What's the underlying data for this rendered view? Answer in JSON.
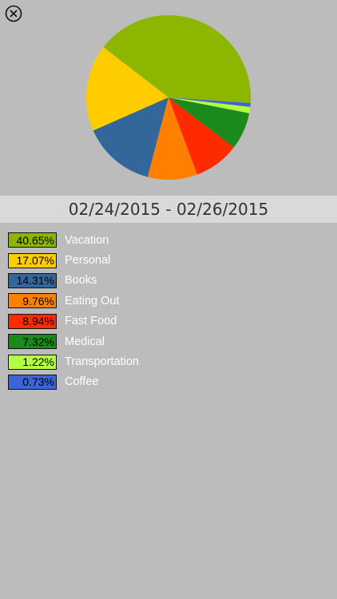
{
  "close_button": {
    "icon": "close-icon"
  },
  "date_range": "02/24/2015 - 02/26/2015",
  "chart_data": {
    "type": "pie",
    "slices": [
      {
        "label": "Vacation",
        "percent_label": "40.65%",
        "value": 40.65,
        "color": "#8db600"
      },
      {
        "label": "Personal",
        "percent_label": "17.07%",
        "value": 17.07,
        "color": "#ffcc00"
      },
      {
        "label": "Books",
        "percent_label": "14.31%",
        "value": 14.31,
        "color": "#336699"
      },
      {
        "label": "Eating Out",
        "percent_label": "9.76%",
        "value": 9.76,
        "color": "#ff7f00"
      },
      {
        "label": "Fast Food",
        "percent_label": "8.94%",
        "value": 8.94,
        "color": "#ff2a00"
      },
      {
        "label": "Medical",
        "percent_label": "7.32%",
        "value": 7.32,
        "color": "#1a8a1a"
      },
      {
        "label": "Transportation",
        "percent_label": "1.22%",
        "value": 1.22,
        "color": "#b2ff44"
      },
      {
        "label": "Coffee",
        "percent_label": "0.73%",
        "value": 0.73,
        "color": "#3d63d6"
      }
    ]
  }
}
